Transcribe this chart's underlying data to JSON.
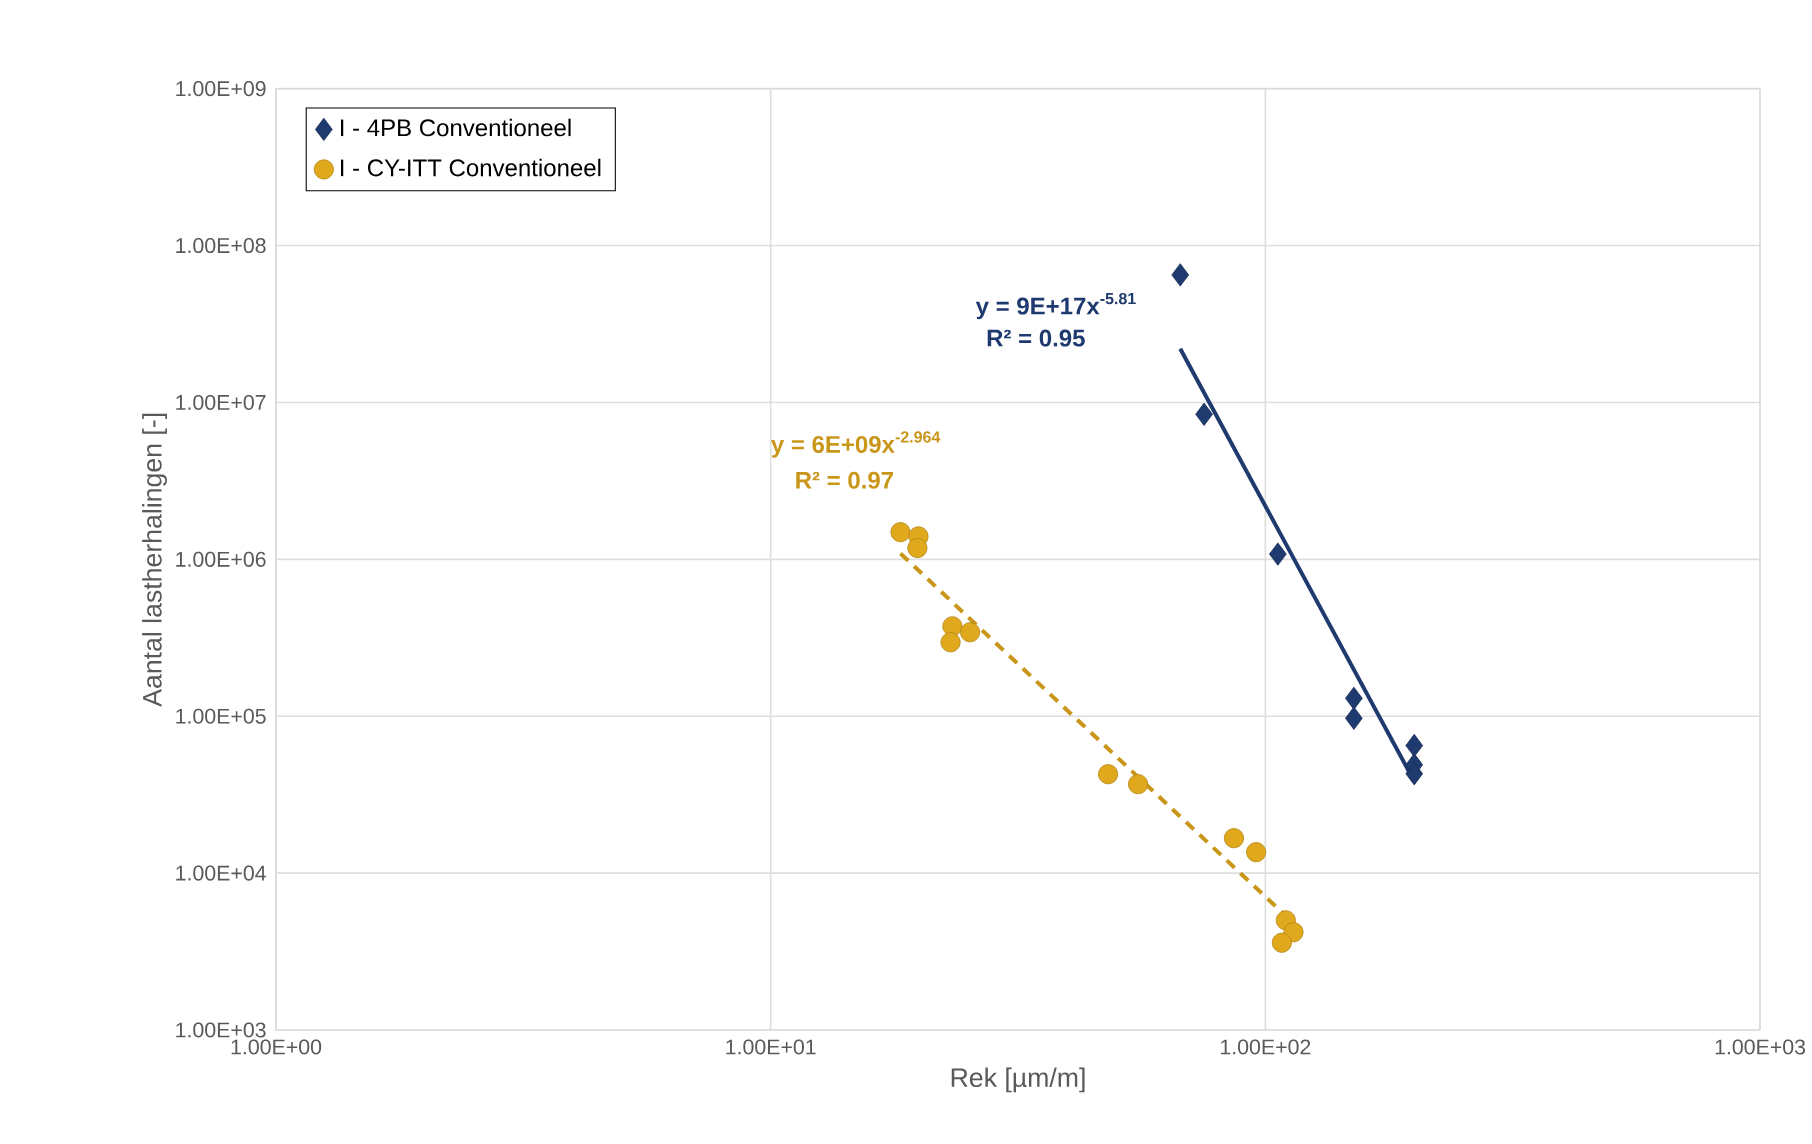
{
  "chart_data": {
    "type": "scatter",
    "xlabel": "Rek [µm/m]",
    "ylabel": "Aantal lastherhalingen [-]",
    "log": "xy",
    "grid": true,
    "legend": "top left",
    "xlim": [
      1,
      1000
    ],
    "ylim": [
      1000,
      1000000000
    ],
    "xticks": [
      {
        "value": 1,
        "label": "1.00E+00"
      },
      {
        "value": 10,
        "label": "1.00E+01"
      },
      {
        "value": 100,
        "label": "1.00E+02"
      },
      {
        "value": 1000,
        "label": "1.00E+03"
      }
    ],
    "yticks": [
      {
        "value": 1000,
        "label": "1.00E+03"
      },
      {
        "value": 10000,
        "label": "1.00E+04"
      },
      {
        "value": 100000,
        "label": "1.00E+05"
      },
      {
        "value": 1000000,
        "label": "1.00E+06"
      },
      {
        "value": 10000000,
        "label": "1.00E+07"
      },
      {
        "value": 100000000,
        "label": "1.00E+08"
      },
      {
        "value": 1000000000,
        "label": "1.00E+09"
      }
    ],
    "series": [
      {
        "name": "I - 4PB Conventioneel",
        "marker": "diamond",
        "color": "#1f3a6e",
        "x": [
          67.3,
          75.2,
          106,
          151,
          151,
          200,
          200,
          200
        ],
        "values": [
          65000000,
          8400000,
          1080000,
          130000,
          97000,
          65000,
          49000,
          43000
        ]
      },
      {
        "name": "I - CY-ITT Conventioneel",
        "marker": "circle",
        "color": "#e0a81c",
        "x": [
          18.3,
          19.9,
          19.8,
          23.3,
          23.1,
          25.3,
          48.1,
          55.3,
          86.4,
          95.8,
          110,
          114,
          108
        ],
        "values": [
          1490000,
          1400000,
          1180000,
          374000,
          296000,
          343000,
          42700,
          36900,
          16700,
          13600,
          5000,
          4200,
          3600
        ]
      },
      {
        "type": "line",
        "line_style": "solid",
        "marker": "none",
        "color": "#1f3a6e",
        "x": [
          67.3,
          200
        ],
        "values": [
          22000000,
          38500
        ]
      },
      {
        "type": "line",
        "line_style": "dashed",
        "marker": "none",
        "color": "#c9961a",
        "x": [
          18.3,
          114
        ],
        "values": [
          1090000,
          4800
        ]
      }
    ],
    "annotations": [
      "y = 9E+17x$^{-5.81}$",
      "R² = 0.95",
      "y = 6E+09x$^{-2.964}$",
      "R² = 0.97"
    ]
  }
}
